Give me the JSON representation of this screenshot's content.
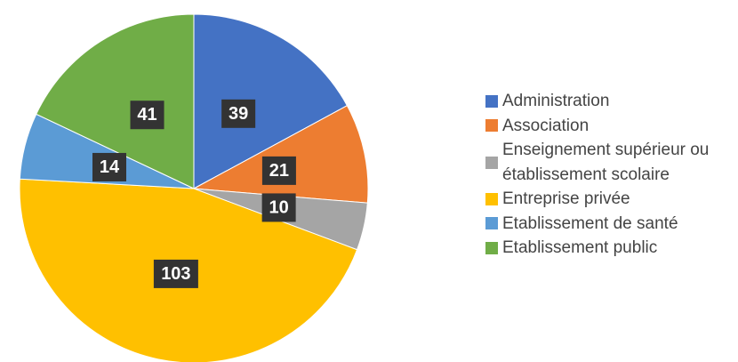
{
  "chart_data": {
    "type": "pie",
    "categories": [
      "Administration",
      "Association",
      "Enseignement supérieur ou établissement scolaire",
      "Entreprise privée",
      "Etablissement de santé",
      "Etablissement public"
    ],
    "values": [
      39,
      21,
      10,
      103,
      14,
      41
    ],
    "colors": [
      "#4472c4",
      "#ed7d31",
      "#a5a5a5",
      "#ffc000",
      "#5b9bd5",
      "#70ad47"
    ],
    "legend": "right"
  }
}
